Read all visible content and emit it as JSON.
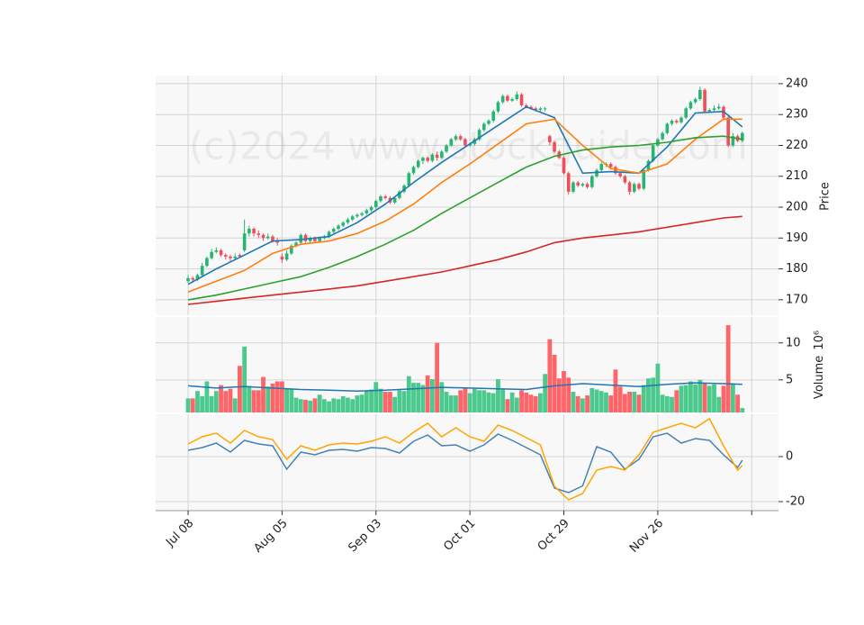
{
  "chart_data": [
    {
      "type": "candlestick",
      "watermark": "(c)2024 www.stockguide.com",
      "ylabel": "Price",
      "up_color": "#26b573",
      "down_color": "#f04e58",
      "grid": true,
      "ylim": [
        165,
        242.6
      ],
      "yticks": [
        170,
        180,
        190,
        200,
        210,
        220,
        230,
        240
      ],
      "xlim": [
        -6.9,
        125.7
      ],
      "xticks": [
        {
          "value": 0,
          "label": "Jul 08"
        },
        {
          "value": 20,
          "label": "Aug 05"
        },
        {
          "value": 40,
          "label": "Sep 03"
        },
        {
          "value": 60,
          "label": "Oct 01"
        },
        {
          "value": 80,
          "label": "Oct 29"
        },
        {
          "value": 100,
          "label": "Nov 26"
        },
        {
          "value": 120,
          "label": null
        }
      ],
      "ohlc": [
        [
          176,
          178,
          175.5,
          177
        ],
        [
          177,
          177.5,
          175.5,
          176.5
        ],
        [
          176.5,
          178.5,
          176,
          178
        ],
        [
          178,
          182,
          177.5,
          181
        ],
        [
          181,
          184,
          180.5,
          183.5
        ],
        [
          183.5,
          186.5,
          183,
          185.5
        ],
        [
          185.5,
          187,
          185,
          186
        ],
        [
          186,
          186.5,
          184,
          184.5
        ],
        [
          184.5,
          185,
          183,
          184
        ],
        [
          184,
          184.5,
          182.5,
          183.5
        ],
        [
          183.5,
          185,
          183,
          184
        ],
        [
          184.5,
          185,
          183.5,
          184
        ],
        [
          186,
          196,
          185.5,
          191.5
        ],
        [
          191.5,
          194,
          190.5,
          193
        ],
        [
          193,
          193.5,
          190.5,
          191.5
        ],
        [
          191.5,
          192.5,
          190,
          191
        ],
        [
          191,
          191.5,
          189,
          190
        ],
        [
          190,
          191.5,
          189.5,
          190.5
        ],
        [
          190.5,
          191,
          188.5,
          189
        ],
        [
          189,
          190,
          187.5,
          188.5
        ],
        [
          184,
          185,
          182,
          183
        ],
        [
          183,
          186,
          182.5,
          185
        ],
        [
          185,
          188,
          184.5,
          187.5
        ],
        [
          187.5,
          189,
          187,
          188.5
        ],
        [
          188.5,
          191.5,
          188,
          191
        ],
        [
          191,
          191.5,
          188.5,
          189
        ],
        [
          189,
          190.5,
          188.5,
          190
        ],
        [
          190,
          190.5,
          188.5,
          189
        ],
        [
          189,
          190.5,
          188.5,
          190
        ],
        [
          190,
          191,
          189.5,
          190.5
        ],
        [
          190.5,
          192.5,
          190,
          192
        ],
        [
          192,
          193.5,
          191.5,
          193
        ],
        [
          193,
          194.5,
          192.5,
          194
        ],
        [
          194,
          195.5,
          193.5,
          195
        ],
        [
          195,
          196.5,
          194.5,
          196
        ],
        [
          196,
          197.5,
          195.5,
          197
        ],
        [
          197,
          198,
          196.5,
          197.5
        ],
        [
          197.5,
          198.5,
          197,
          198
        ],
        [
          198,
          199.5,
          197.5,
          199
        ],
        [
          199,
          200.5,
          198.5,
          200
        ],
        [
          200,
          202.5,
          199.5,
          202
        ],
        [
          202,
          204,
          201.5,
          203.5
        ],
        [
          203.5,
          204,
          202.5,
          203
        ],
        [
          203,
          203.5,
          201,
          201.5
        ],
        [
          201.5,
          203.5,
          201,
          203
        ],
        [
          203,
          205.5,
          202.5,
          205
        ],
        [
          205,
          207.5,
          204.5,
          207
        ],
        [
          207,
          211.5,
          206.5,
          211
        ],
        [
          211,
          213.5,
          210.5,
          213
        ],
        [
          213,
          215.5,
          212.5,
          215
        ],
        [
          215,
          216.5,
          214,
          216
        ],
        [
          216,
          216.5,
          214.5,
          215
        ],
        [
          215,
          217.5,
          214.5,
          217
        ],
        [
          217,
          218,
          215,
          216
        ],
        [
          216,
          218.5,
          215.5,
          218
        ],
        [
          218,
          220.5,
          217.5,
          220
        ],
        [
          220,
          222.5,
          219.5,
          222
        ],
        [
          222,
          223.5,
          221.5,
          223
        ],
        [
          223,
          223.5,
          221.5,
          222
        ],
        [
          222,
          222.5,
          219.5,
          220
        ],
        [
          220,
          221,
          219.5,
          220.5
        ],
        [
          220.5,
          222.5,
          220,
          222
        ],
        [
          222,
          225.5,
          221.5,
          225
        ],
        [
          225,
          227.5,
          224.5,
          227
        ],
        [
          227,
          228.5,
          226.5,
          228
        ],
        [
          228,
          231.5,
          227.5,
          231
        ],
        [
          231,
          234.5,
          230.5,
          234
        ],
        [
          234,
          236.5,
          233.5,
          236
        ],
        [
          236,
          236.5,
          234,
          234.5
        ],
        [
          234.5,
          235.5,
          234,
          235
        ],
        [
          235,
          237.5,
          234.5,
          236.5
        ],
        [
          236.5,
          237,
          232.5,
          233
        ],
        [
          233,
          233.5,
          232,
          232.5
        ],
        [
          232.5,
          233,
          231.5,
          232
        ],
        [
          232,
          232.5,
          231,
          231.5
        ],
        [
          231.5,
          232.5,
          231,
          232
        ],
        [
          232,
          232.5,
          231,
          232
        ],
        [
          223,
          223.5,
          220,
          221
        ],
        [
          221,
          221.5,
          217.5,
          218
        ],
        [
          218,
          218.5,
          215.5,
          216
        ],
        [
          216,
          216.5,
          210.5,
          211
        ],
        [
          211,
          211.5,
          204,
          205
        ],
        [
          205,
          208.5,
          204.5,
          208
        ],
        [
          208,
          208.5,
          206.5,
          207
        ],
        [
          207,
          208,
          206.5,
          207.5
        ],
        [
          207.5,
          208,
          206,
          206.5
        ],
        [
          206.5,
          210.5,
          206,
          210
        ],
        [
          210,
          212.5,
          209.5,
          212
        ],
        [
          212,
          214.5,
          211.5,
          214
        ],
        [
          214,
          214.5,
          213,
          214
        ],
        [
          214,
          214.5,
          212.5,
          213
        ],
        [
          213,
          213.5,
          210.5,
          211
        ],
        [
          211,
          211.5,
          209.5,
          210
        ],
        [
          210,
          210.5,
          207.5,
          208
        ],
        [
          208,
          208.5,
          204,
          205
        ],
        [
          205,
          208,
          204.5,
          207.5
        ],
        [
          207.5,
          208,
          205.5,
          206
        ],
        [
          206,
          212.5,
          205.5,
          212
        ],
        [
          212,
          215.5,
          211.5,
          215
        ],
        [
          215,
          220.5,
          214.5,
          220
        ],
        [
          220,
          222.5,
          219.5,
          222
        ],
        [
          222,
          224.5,
          221.5,
          224
        ],
        [
          224,
          227.5,
          223.5,
          227
        ],
        [
          227,
          228.5,
          226.5,
          228
        ],
        [
          228,
          228.5,
          227,
          227.5
        ],
        [
          227.5,
          229.5,
          227,
          229
        ],
        [
          229,
          232.5,
          228.5,
          232
        ],
        [
          232,
          234.5,
          231.5,
          234
        ],
        [
          234,
          235.5,
          233.5,
          235
        ],
        [
          235,
          239,
          234.5,
          238
        ],
        [
          238,
          238.5,
          230.5,
          231
        ],
        [
          231,
          232,
          230.5,
          231.5
        ],
        [
          231.5,
          233,
          231,
          232
        ],
        [
          232,
          233.5,
          231.5,
          232.5
        ],
        [
          232.5,
          233,
          228.5,
          229
        ],
        [
          229,
          229.5,
          219.5,
          220
        ],
        [
          220,
          224,
          219.5,
          223
        ],
        [
          223,
          223.5,
          221,
          221.5
        ],
        [
          221.5,
          224.5,
          221,
          224
        ]
      ],
      "overlay_x": [
        0,
        6,
        12,
        18,
        24,
        30,
        36,
        42,
        48,
        54,
        60,
        66,
        72,
        78,
        84,
        90,
        96,
        102,
        108,
        114,
        118
      ],
      "overlays": [
        {
          "color": "#1f77b4",
          "values": [
            175,
            180,
            184.5,
            189,
            189.5,
            190.5,
            195,
            201,
            208,
            214.5,
            220.5,
            226.5,
            232.5,
            229,
            211,
            211.5,
            211,
            219.5,
            230.5,
            231,
            226
          ]
        },
        {
          "color": "#ff7f0e",
          "values": [
            172.5,
            176,
            179.5,
            185,
            188,
            189,
            191.5,
            195.5,
            201,
            208,
            214,
            220.5,
            227,
            228.5,
            220,
            212.5,
            211,
            214,
            222,
            228.5,
            228.5
          ]
        },
        {
          "color": "#2ca02c",
          "values": [
            170,
            171.5,
            173.5,
            175.5,
            177.5,
            180.5,
            184,
            188,
            192.5,
            198,
            203,
            208,
            213,
            216.5,
            218.5,
            219.5,
            220,
            221,
            222.5,
            223,
            222
          ]
        },
        {
          "color": "#d62728",
          "values": [
            168.5,
            169.5,
            170.5,
            171.5,
            172.5,
            173.5,
            174.5,
            176,
            177.5,
            179,
            181,
            183,
            185.5,
            188.5,
            190,
            191,
            192,
            193.5,
            195,
            196.5,
            197
          ]
        }
      ]
    },
    {
      "type": "bar",
      "ylabel": "Volume",
      "yexponent": "10⁶",
      "up_color": "#4cc98c",
      "down_color": "#ff6468",
      "ylim": [
        0.6,
        13.5
      ],
      "yticks": [
        5,
        10
      ],
      "values": [
        2.5,
        2.5,
        3.5,
        2.8,
        4.8,
        2.8,
        3.5,
        4.3,
        3.5,
        3.8,
        2.5,
        6.9,
        9.5,
        4.2,
        3.6,
        3.6,
        5.4,
        4.1,
        4.5,
        4.8,
        4.8,
        3.9,
        3.8,
        2.6,
        2.4,
        2.3,
        2.2,
        2.5,
        3.0,
        2.4,
        2.1,
        2.5,
        2.4,
        2.8,
        2.6,
        2.4,
        2.9,
        3.0,
        3.5,
        3.7,
        4.7,
        3.8,
        3.4,
        3.4,
        2.7,
        3.6,
        3.5,
        5.5,
        4.6,
        4.6,
        4.3,
        5.6,
        5.1,
        10.0,
        4.7,
        3.4,
        2.9,
        2.9,
        3.6,
        3.9,
        3.2,
        3.8,
        3.6,
        3.6,
        3.3,
        3.2,
        5.1,
        3.7,
        2.4,
        3.3,
        2.6,
        3.6,
        3.3,
        3.0,
        2.8,
        3.2,
        5.8,
        10.5,
        8.4,
        5.2,
        6.2,
        5.3,
        3.4,
        2.8,
        2.5,
        2.9,
        3.9,
        3.7,
        3.5,
        3.3,
        2.9,
        6.4,
        4.1,
        3.1,
        3.4,
        3.4,
        3.0,
        4.3,
        5.2,
        5.3,
        7.2,
        3.0,
        2.8,
        2.7,
        3.6,
        4.2,
        4.3,
        4.8,
        4.4,
        5.0,
        4.6,
        4.2,
        4.4,
        2.7,
        4.2,
        12.4,
        4.5,
        3.0,
        1.2
      ],
      "ma_x": [
        0,
        6,
        12,
        18,
        24,
        30,
        36,
        42,
        48,
        54,
        60,
        66,
        72,
        78,
        84,
        90,
        96,
        102,
        108,
        114,
        118
      ],
      "ma": {
        "color": "#1f77b4",
        "values": [
          4.2,
          3.9,
          4.1,
          3.9,
          3.7,
          3.6,
          3.5,
          3.6,
          3.8,
          4.0,
          3.9,
          3.8,
          3.7,
          4.2,
          4.5,
          4.3,
          4.1,
          4.4,
          4.6,
          4.5,
          4.4
        ]
      }
    },
    {
      "type": "line",
      "ylim": [
        -24,
        18.8
      ],
      "yticks": [
        -20,
        0
      ],
      "x": [
        0,
        3,
        6,
        9,
        12,
        15,
        18,
        21,
        24,
        27,
        30,
        33,
        36,
        39,
        42,
        45,
        48,
        51,
        54,
        57,
        60,
        63,
        66,
        69,
        72,
        75,
        78,
        81,
        84,
        87,
        90,
        93,
        96,
        99,
        102,
        105,
        108,
        111,
        114,
        117,
        118
      ],
      "series": [
        {
          "color": "#4682b4",
          "values": [
            2.8,
            4,
            6,
            2,
            7.2,
            5.6,
            4.8,
            -5.6,
            2,
            0.8,
            2.8,
            3.2,
            2.4,
            4,
            3.6,
            1.6,
            6.8,
            9.6,
            4.8,
            5.2,
            2.4,
            5.2,
            10,
            7.2,
            4,
            0.8,
            -14,
            -16,
            -13,
            4.4,
            2,
            -5.6,
            -1.2,
            8.8,
            10.4,
            6,
            8,
            7.2,
            0.8,
            -4.8,
            -1.6
          ]
        },
        {
          "color": "#ffa500",
          "values": [
            5.6,
            8.8,
            10.4,
            6,
            11.6,
            8.8,
            7.6,
            -1.2,
            4.8,
            2.8,
            5.2,
            6,
            5.6,
            6.8,
            8.8,
            6,
            10.8,
            14.8,
            8.8,
            12.8,
            8.8,
            6.8,
            14,
            11.6,
            8.4,
            5.2,
            -13.2,
            -19.2,
            -16.4,
            -6,
            -4.4,
            -6,
            0.8,
            10.8,
            12.8,
            14.8,
            12.8,
            16.8,
            4.8,
            -6,
            -4
          ]
        }
      ]
    }
  ]
}
